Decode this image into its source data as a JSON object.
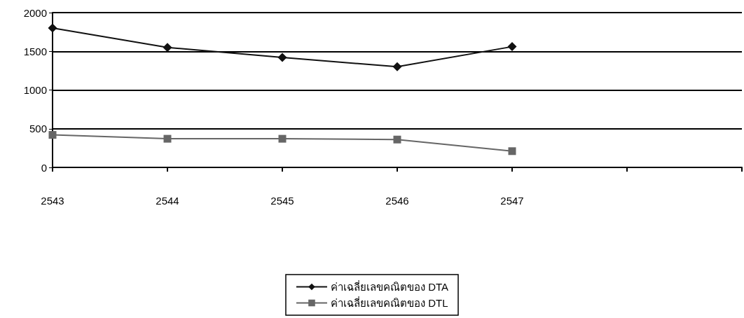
{
  "chart_data": {
    "type": "line",
    "categories": [
      "2543",
      "2544",
      "2545",
      "2546",
      "2547",
      null,
      null
    ],
    "series": [
      {
        "name": "ค่าเฉลี่ยเลขคณิตของ DTA",
        "color": "#111111",
        "marker": "diamond",
        "values": [
          1800,
          1550,
          1420,
          1300,
          1560,
          null,
          null
        ]
      },
      {
        "name": "ค่าเฉลี่ยเลขคณิตของ DTL",
        "color": "#666666",
        "marker": "square",
        "values": [
          420,
          370,
          370,
          360,
          210,
          null,
          null
        ]
      }
    ],
    "ylim": [
      0,
      2000
    ],
    "yticks": [
      0,
      500,
      1000,
      1500,
      2000
    ],
    "grid": "y",
    "legend": "bottom"
  }
}
